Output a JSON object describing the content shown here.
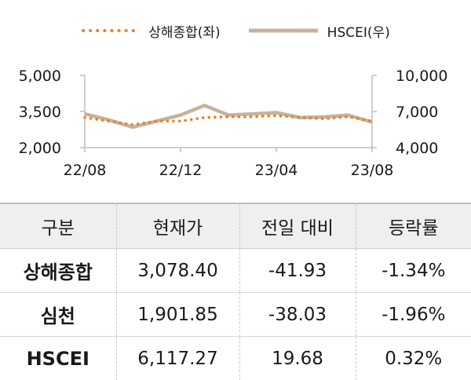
{
  "legend": [
    {
      "name": "상해종합(좌)",
      "color": "#ee7d24",
      "style": "dotted"
    },
    {
      "name": "HSCEI(우)",
      "color": "#c4b39a",
      "style": "solid"
    }
  ],
  "chart_data": {
    "type": "line",
    "x_ticks": [
      "22/08",
      "22/12",
      "23/04",
      "23/08"
    ],
    "x_range": [
      "2022-08",
      "2023-08"
    ],
    "y_left_ticks": [
      "5,000",
      "3,500",
      "2,000"
    ],
    "y_left_range": [
      2000,
      5000
    ],
    "y_right_ticks": [
      "10,000",
      "7,000",
      "4,000"
    ],
    "y_right_range": [
      4000,
      10000
    ],
    "grid": false,
    "series": [
      {
        "name": "상해종합(좌)",
        "axis": "left",
        "color": "#ee7d24",
        "dates": [
          "2022-08",
          "2022-09",
          "2022-10",
          "2022-11",
          "2022-12",
          "2023-01",
          "2023-02",
          "2023-03",
          "2023-04",
          "2023-05",
          "2023-06",
          "2023-07",
          "2023-08"
        ],
        "values": [
          3250,
          3100,
          2950,
          3100,
          3100,
          3250,
          3280,
          3280,
          3330,
          3250,
          3200,
          3280,
          3100
        ]
      },
      {
        "name": "HSCEI(우)",
        "axis": "right",
        "color": "#c4b39a",
        "dates": [
          "2022-08",
          "2022-09",
          "2022-10",
          "2022-11",
          "2022-12",
          "2023-01",
          "2023-02",
          "2023-03",
          "2023-04",
          "2023-05",
          "2023-06",
          "2023-07",
          "2023-08"
        ],
        "values": [
          6800,
          6300,
          5700,
          6200,
          6700,
          7500,
          6700,
          6800,
          6900,
          6500,
          6550,
          6700,
          6117
        ]
      }
    ]
  },
  "table": {
    "headers": [
      "구분",
      "현재가",
      "전일 대비",
      "등락률"
    ],
    "rows": [
      [
        "상해종합",
        "3,078.40",
        "-41.93",
        "-1.34%"
      ],
      [
        "심천",
        "1,901.85",
        "-38.03",
        "-1.96%"
      ],
      [
        "HSCEI",
        "6,117.27",
        "19.68",
        "0.32%"
      ]
    ]
  }
}
